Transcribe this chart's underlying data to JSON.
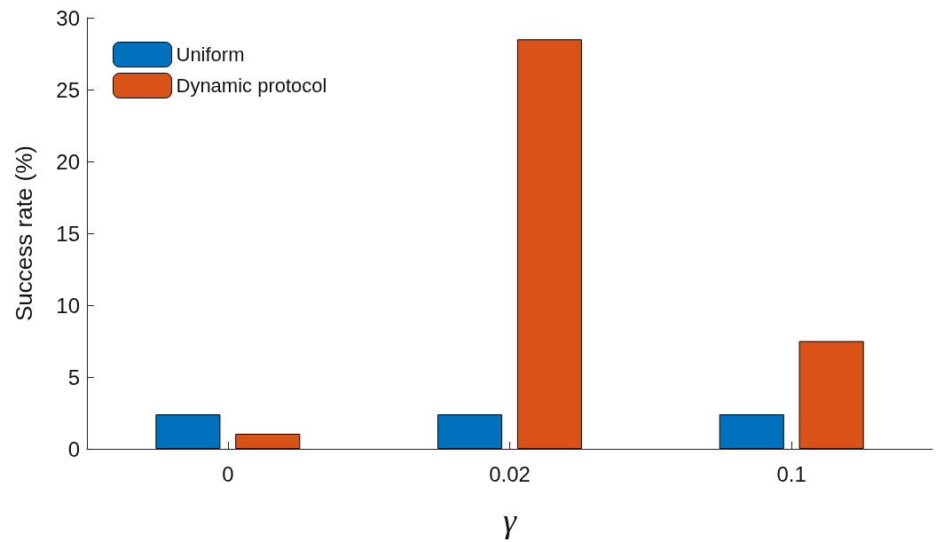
{
  "chart_data": {
    "type": "bar",
    "xlabel": "γ",
    "ylabel": "Success rate (%)",
    "categories": [
      "0",
      "0.02",
      "0.1"
    ],
    "series": [
      {
        "name": "Uniform",
        "color": "#0072bd",
        "values": [
          2.4,
          2.4,
          2.4
        ]
      },
      {
        "name": "Dynamic protocol",
        "color": "#d95319",
        "values": [
          1.05,
          28.5,
          7.5
        ]
      }
    ],
    "ylim": [
      0,
      30
    ],
    "yticks": [
      0,
      5,
      10,
      15,
      20,
      25,
      30
    ],
    "grid": false,
    "legend": "top left"
  }
}
